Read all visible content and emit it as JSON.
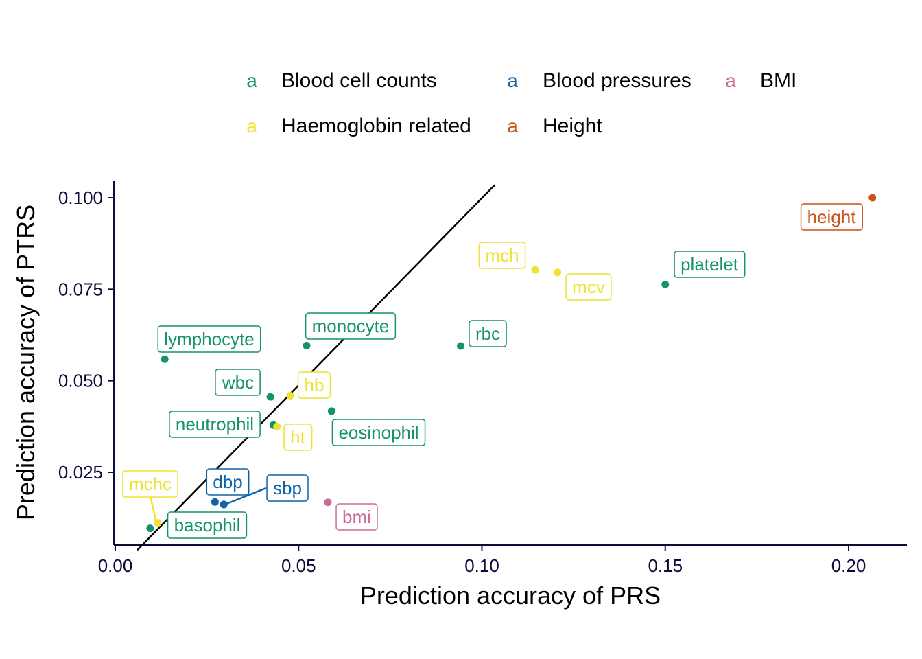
{
  "chart_data": {
    "type": "scatter",
    "xlabel": "Prediction accuracy of PRS",
    "ylabel": "Prediction accuracy of PTRS",
    "xlim": [
      0.0,
      0.215
    ],
    "ylim": [
      0.006,
      0.104
    ],
    "x_ticks": [
      "0.00",
      "0.05",
      "0.10",
      "0.15",
      "0.20"
    ],
    "y_ticks": [
      "0.025",
      "0.050",
      "0.075",
      "0.100"
    ],
    "reference_line": "y = x",
    "grid": false,
    "legend_position": "top",
    "legend_key_glyph": "a",
    "groups": [
      {
        "name": "Blood cell counts",
        "color": "#16936b"
      },
      {
        "name": "Blood pressures",
        "color": "#1263a6"
      },
      {
        "name": "BMI",
        "color": "#cd6a9c"
      },
      {
        "name": "Haemoglobin related",
        "color": "#eee233"
      },
      {
        "name": "Height",
        "color": "#c8521a"
      }
    ],
    "points": [
      {
        "label": "height",
        "group": "Height",
        "x": 0.2065,
        "y": 0.1
      },
      {
        "label": "platelet",
        "group": "Blood cell counts",
        "x": 0.15,
        "y": 0.0763
      },
      {
        "label": "mch",
        "group": "Haemoglobin related",
        "x": 0.1145,
        "y": 0.0803
      },
      {
        "label": "mcv",
        "group": "Haemoglobin related",
        "x": 0.1206,
        "y": 0.0796
      },
      {
        "label": "rbc",
        "group": "Blood cell counts",
        "x": 0.0942,
        "y": 0.0595
      },
      {
        "label": "monocyte",
        "group": "Blood cell counts",
        "x": 0.0522,
        "y": 0.0596
      },
      {
        "label": "lymphocyte",
        "group": "Blood cell counts",
        "x": 0.0135,
        "y": 0.0559
      },
      {
        "label": "wbc",
        "group": "Blood cell counts",
        "x": 0.0423,
        "y": 0.0456
      },
      {
        "label": "hb",
        "group": "Haemoglobin related",
        "x": 0.0477,
        "y": 0.0459
      },
      {
        "label": "neutrophil",
        "group": "Blood cell counts",
        "x": 0.0431,
        "y": 0.0379
      },
      {
        "label": "ht",
        "group": "Haemoglobin related",
        "x": 0.0441,
        "y": 0.0375
      },
      {
        "label": "eosinophil",
        "group": "Blood cell counts",
        "x": 0.059,
        "y": 0.0417
      },
      {
        "label": "dbp",
        "group": "Blood pressures",
        "x": 0.0272,
        "y": 0.0169
      },
      {
        "label": "sbp",
        "group": "Blood pressures",
        "x": 0.0296,
        "y": 0.0162
      },
      {
        "label": "bmi",
        "group": "BMI",
        "x": 0.058,
        "y": 0.0168
      },
      {
        "label": "mchc",
        "group": "Haemoglobin related",
        "x": 0.0116,
        "y": 0.0112
      },
      {
        "label": "basophil",
        "group": "Blood cell counts",
        "x": 0.0095,
        "y": 0.0097
      }
    ]
  }
}
